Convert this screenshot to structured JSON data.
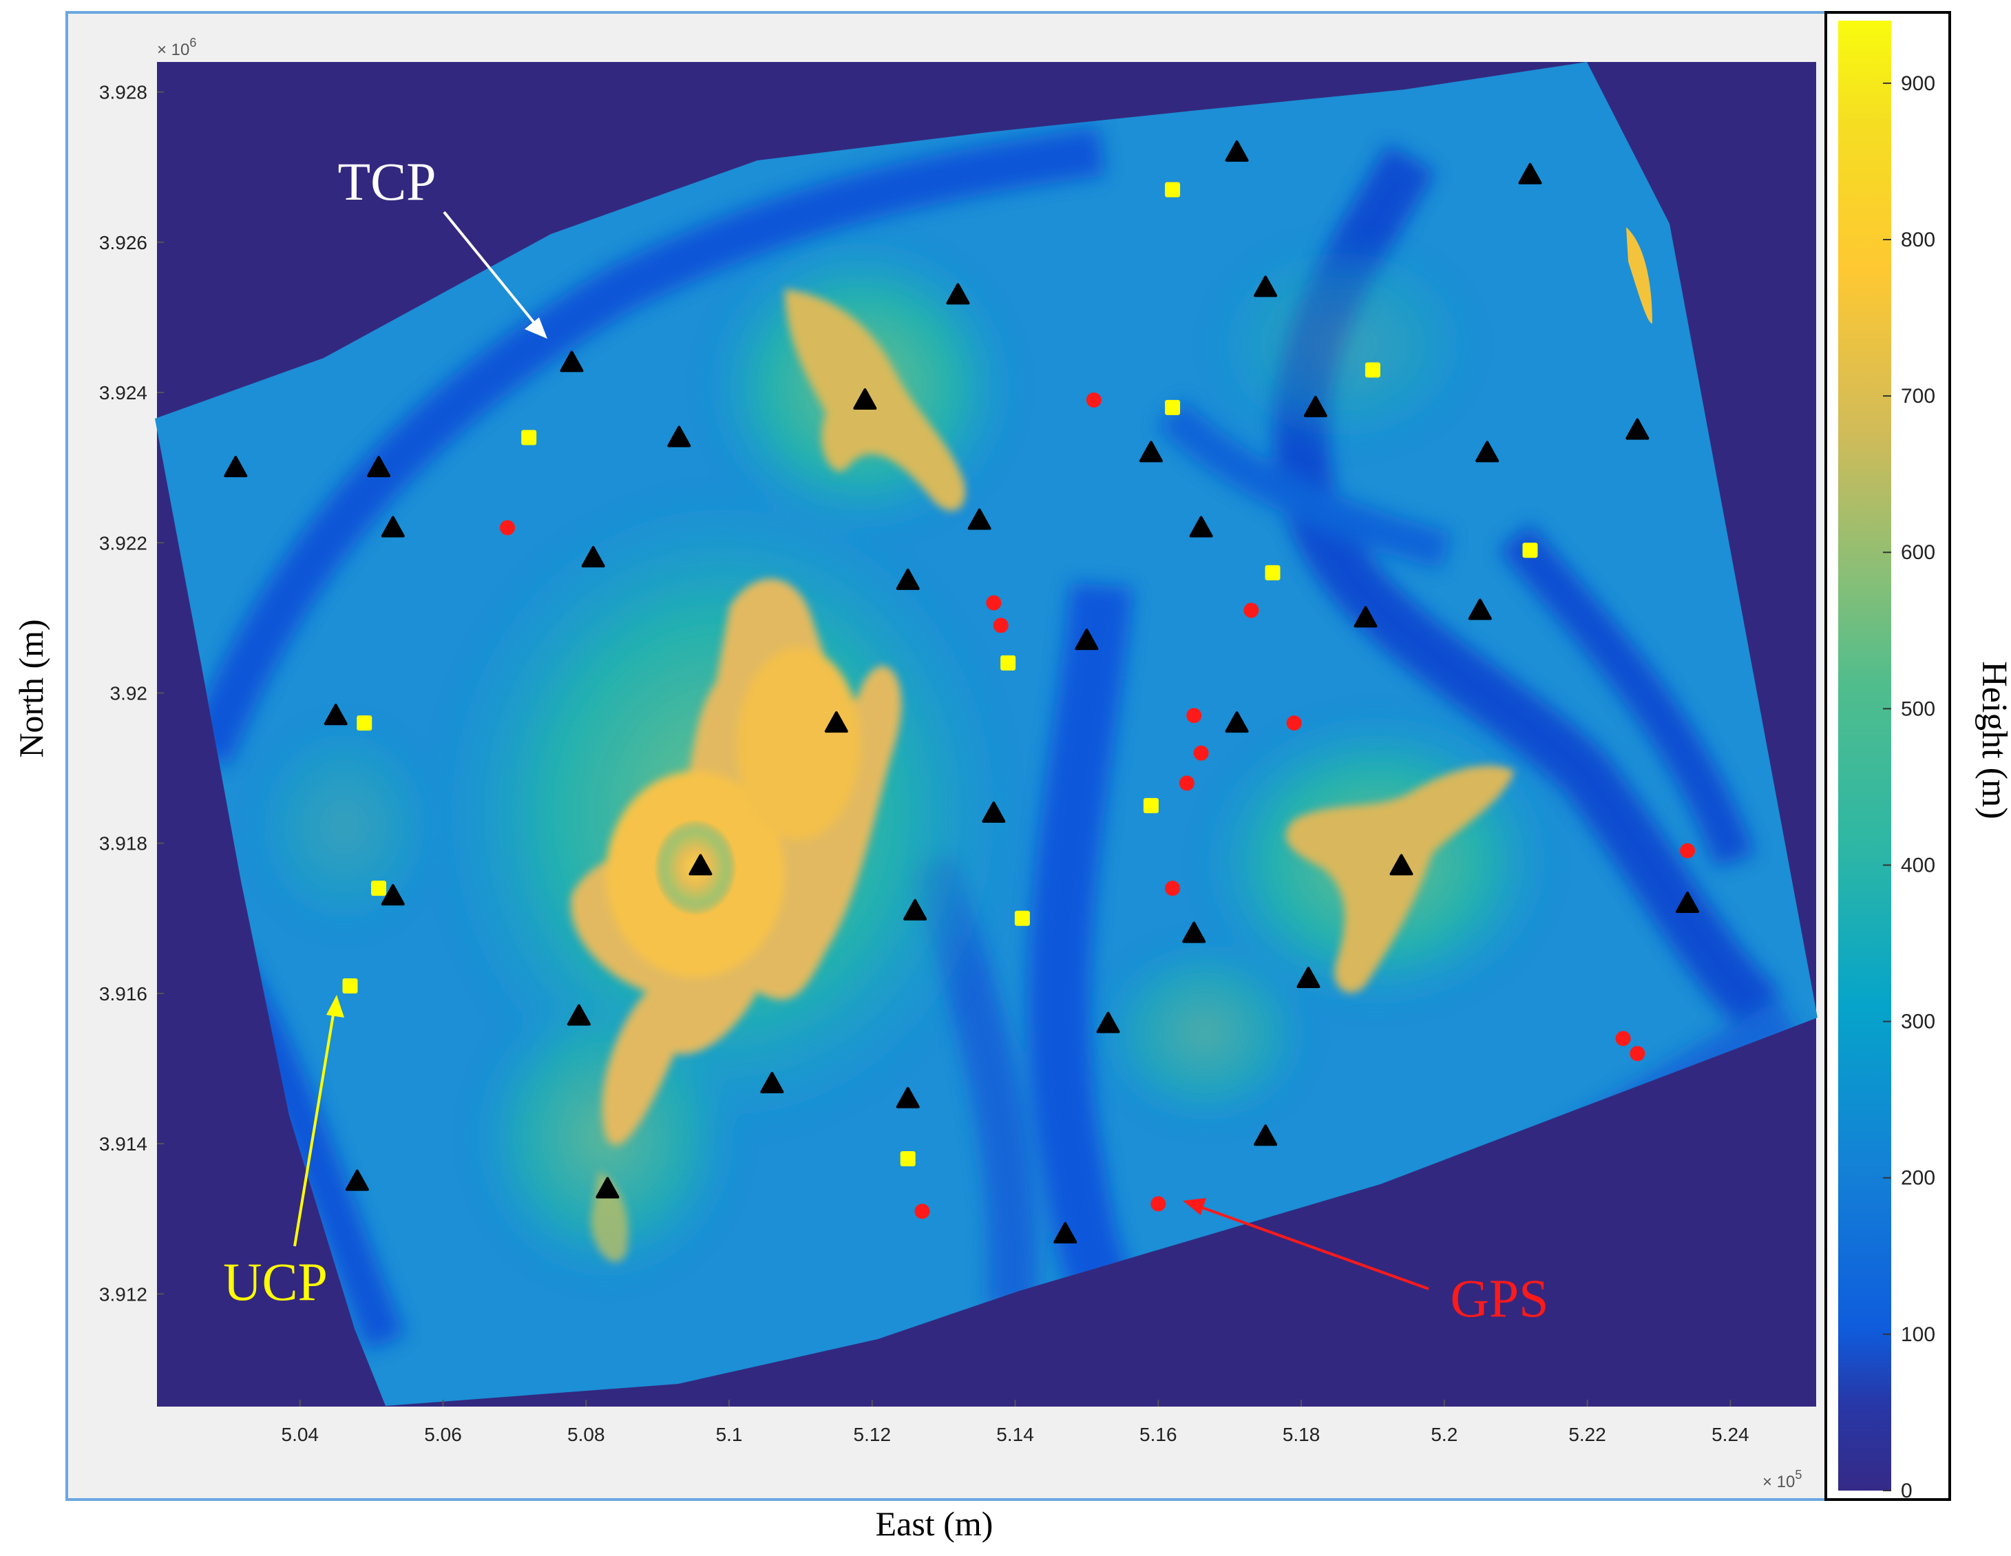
{
  "figure": {
    "x_label": "East (m)",
    "y_label": "North (m)",
    "x_exponent": "× 10",
    "x_exponent_power": "5",
    "y_exponent": "× 10",
    "y_exponent_power": "6",
    "colorbar_label": "Height (m)"
  },
  "colors": {
    "background_nodata": "#33287f",
    "frame_outer": "#f0f0f0",
    "frame_border": "#6aa7e0",
    "tcp_marker": "#000000",
    "ucp_marker": "#ffff00",
    "gps_marker": "#ff1a1a",
    "tcp_annotation": "#ffffff",
    "ucp_annotation": "#ffff00",
    "gps_annotation": "#ff1a1a",
    "colormap": [
      "#352a87",
      "#0f5cdd",
      "#1481d6",
      "#06a4ca",
      "#2eb7a4",
      "#87bf77",
      "#d1bb59",
      "#fec832",
      "#f9fb0e"
    ]
  },
  "chart_data": {
    "type": "scatter",
    "x_ticks": [
      "5.04",
      "5.06",
      "5.08",
      "5.1",
      "5.12",
      "5.14",
      "5.16",
      "5.18",
      "5.2",
      "5.22",
      "5.24"
    ],
    "y_ticks": [
      "3.928",
      "3.926",
      "3.924",
      "3.922",
      "3.92",
      "3.918",
      "3.916",
      "3.914",
      "3.912"
    ],
    "colorbar_ticks": [
      "0",
      "100",
      "200",
      "300",
      "400",
      "500",
      "600",
      "700",
      "800",
      "900"
    ],
    "colorbar_range": [
      0,
      940
    ],
    "annotations": [
      {
        "text": "TCP",
        "series": "TCP"
      },
      {
        "text": "UCP",
        "series": "UCP"
      },
      {
        "text": "GPS",
        "series": "GPS"
      }
    ],
    "tcp_points": [
      [
        503.1,
        3923.0
      ],
      [
        505.1,
        3923.0
      ],
      [
        505.3,
        3922.2
      ],
      [
        507.8,
        3924.4
      ],
      [
        508.1,
        3921.8
      ],
      [
        509.3,
        3923.4
      ],
      [
        511.9,
        3923.9
      ],
      [
        513.2,
        3925.3
      ],
      [
        512.5,
        3921.5
      ],
      [
        513.5,
        3922.3
      ],
      [
        517.1,
        3927.2
      ],
      [
        515.9,
        3923.2
      ],
      [
        516.6,
        3922.2
      ],
      [
        517.5,
        3925.4
      ],
      [
        518.2,
        3923.8
      ],
      [
        521.2,
        3926.9
      ],
      [
        522.7,
        3923.5
      ],
      [
        520.6,
        3923.2
      ],
      [
        520.5,
        3921.1
      ],
      [
        518.9,
        3921.0
      ],
      [
        515.0,
        3920.7
      ],
      [
        511.5,
        3919.6
      ],
      [
        504.5,
        3919.7
      ],
      [
        509.6,
        3917.7
      ],
      [
        513.7,
        3918.4
      ],
      [
        517.1,
        3919.6
      ],
      [
        519.4,
        3917.7
      ],
      [
        523.4,
        3917.2
      ],
      [
        505.3,
        3917.3
      ],
      [
        512.6,
        3917.1
      ],
      [
        516.5,
        3916.8
      ],
      [
        518.1,
        3916.2
      ],
      [
        507.9,
        3915.7
      ],
      [
        515.3,
        3915.6
      ],
      [
        510.6,
        3914.8
      ],
      [
        512.5,
        3914.6
      ],
      [
        517.5,
        3914.1
      ],
      [
        504.8,
        3913.5
      ],
      [
        508.3,
        3913.4
      ],
      [
        514.7,
        3912.8
      ]
    ],
    "ucp_points": [
      [
        516.2,
        3926.7
      ],
      [
        519.0,
        3924.3
      ],
      [
        507.2,
        3923.4
      ],
      [
        516.2,
        3923.8
      ],
      [
        517.6,
        3921.6
      ],
      [
        521.2,
        3921.9
      ],
      [
        513.9,
        3920.4
      ],
      [
        504.9,
        3919.6
      ],
      [
        515.9,
        3918.5
      ],
      [
        505.1,
        3917.4
      ],
      [
        514.1,
        3917.0
      ],
      [
        504.7,
        3916.1
      ],
      [
        512.5,
        3913.8
      ]
    ],
    "gps_points": [
      [
        515.1,
        3923.9
      ],
      [
        506.9,
        3922.2
      ],
      [
        513.7,
        3921.2
      ],
      [
        513.8,
        3920.9
      ],
      [
        517.3,
        3921.1
      ],
      [
        516.5,
        3919.7
      ],
      [
        516.6,
        3919.2
      ],
      [
        516.4,
        3918.8
      ],
      [
        517.9,
        3919.6
      ],
      [
        516.2,
        3917.4
      ],
      [
        523.4,
        3917.9
      ],
      [
        522.5,
        3915.4
      ],
      [
        522.7,
        3915.2
      ],
      [
        512.7,
        3913.1
      ],
      [
        516.0,
        3913.2
      ]
    ]
  }
}
